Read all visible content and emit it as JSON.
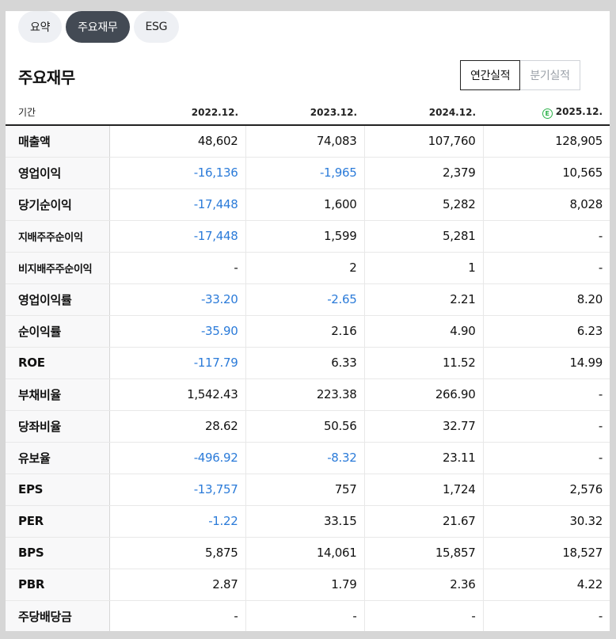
{
  "tabs": [
    {
      "label": "요약"
    },
    {
      "label": "주요재무"
    },
    {
      "label": "ESG"
    }
  ],
  "section_title": "주요재무",
  "period_toggle": {
    "annual": "연간실적",
    "quarterly": "분기실적"
  },
  "table": {
    "period_header": "기간",
    "columns": [
      "2022.12.",
      "2023.12.",
      "2024.12.",
      "2025.12."
    ],
    "estimate_marker": "E",
    "rows": [
      {
        "label": "매출액",
        "values": [
          "48,602",
          "74,083",
          "107,760",
          "128,905"
        ]
      },
      {
        "label": "영업이익",
        "values": [
          "-16,136",
          "-1,965",
          "2,379",
          "10,565"
        ]
      },
      {
        "label": "당기순이익",
        "values": [
          "-17,448",
          "1,600",
          "5,282",
          "8,028"
        ]
      },
      {
        "label": "지배주주순이익",
        "values": [
          "-17,448",
          "1,599",
          "5,281",
          "-"
        ]
      },
      {
        "label": "비지배주주순이익",
        "values": [
          "-",
          "2",
          "1",
          "-"
        ]
      },
      {
        "label": "영업이익률",
        "values": [
          "-33.20",
          "-2.65",
          "2.21",
          "8.20"
        ]
      },
      {
        "label": "순이익률",
        "values": [
          "-35.90",
          "2.16",
          "4.90",
          "6.23"
        ]
      },
      {
        "label": "ROE",
        "values": [
          "-117.79",
          "6.33",
          "11.52",
          "14.99"
        ]
      },
      {
        "label": "부채비율",
        "values": [
          "1,542.43",
          "223.38",
          "266.90",
          "-"
        ]
      },
      {
        "label": "당좌비율",
        "values": [
          "28.62",
          "50.56",
          "32.77",
          "-"
        ]
      },
      {
        "label": "유보율",
        "values": [
          "-496.92",
          "-8.32",
          "23.11",
          "-"
        ]
      },
      {
        "label": "EPS",
        "values": [
          "-13,757",
          "757",
          "1,724",
          "2,576"
        ]
      },
      {
        "label": "PER",
        "values": [
          "-1.22",
          "33.15",
          "21.67",
          "30.32"
        ]
      },
      {
        "label": "BPS",
        "values": [
          "5,875",
          "14,061",
          "15,857",
          "18,527"
        ]
      },
      {
        "label": "PBR",
        "values": [
          "2.87",
          "1.79",
          "2.36",
          "4.22"
        ]
      },
      {
        "label": "주당배당금",
        "values": [
          "-",
          "-",
          "-",
          "-"
        ]
      }
    ]
  },
  "colors": {
    "negative": "#2b7bd9",
    "active_tab": "#434a54",
    "estimate_badge": "#2cb24a"
  }
}
